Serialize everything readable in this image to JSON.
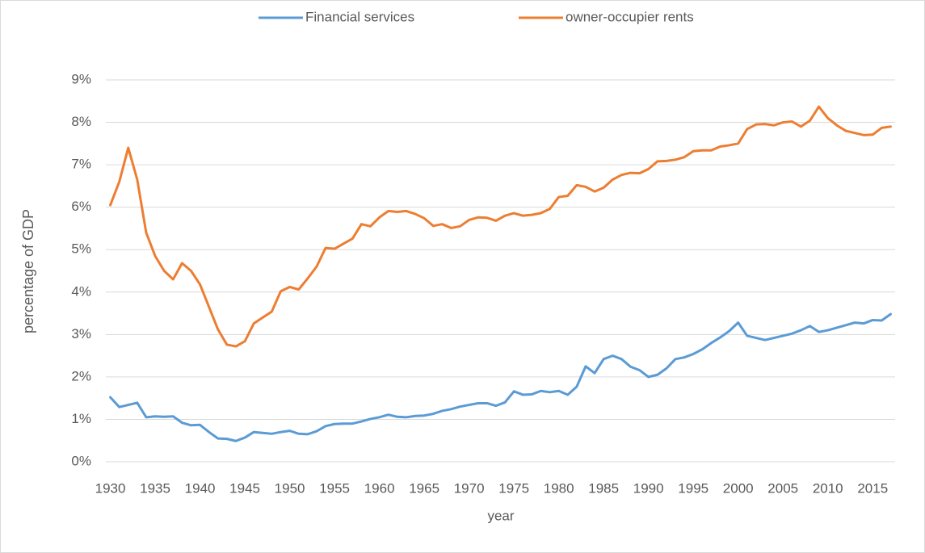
{
  "chart_data": {
    "type": "line",
    "xlabel": "year",
    "ylabel": "percentage of GDP",
    "x": [
      1930,
      1931,
      1932,
      1933,
      1934,
      1935,
      1936,
      1937,
      1938,
      1939,
      1940,
      1941,
      1942,
      1943,
      1944,
      1945,
      1946,
      1947,
      1948,
      1949,
      1950,
      1951,
      1952,
      1953,
      1954,
      1955,
      1956,
      1957,
      1958,
      1959,
      1960,
      1961,
      1962,
      1963,
      1964,
      1965,
      1966,
      1967,
      1968,
      1969,
      1970,
      1971,
      1972,
      1973,
      1974,
      1975,
      1976,
      1977,
      1978,
      1979,
      1980,
      1981,
      1982,
      1983,
      1984,
      1985,
      1986,
      1987,
      1988,
      1989,
      1990,
      1991,
      1992,
      1993,
      1994,
      1995,
      1996,
      1997,
      1998,
      1999,
      2000,
      2001,
      2002,
      2003,
      2004,
      2005,
      2006,
      2007,
      2008,
      2009,
      2010,
      2011,
      2012,
      2013,
      2014,
      2015,
      2016,
      2017
    ],
    "series": [
      {
        "name": "Financial services",
        "color": "#5b9bd5",
        "values": [
          1.52,
          1.29,
          1.34,
          1.39,
          1.05,
          1.07,
          1.06,
          1.07,
          0.92,
          0.86,
          0.87,
          0.7,
          0.55,
          0.54,
          0.49,
          0.57,
          0.7,
          0.68,
          0.66,
          0.7,
          0.73,
          0.66,
          0.65,
          0.72,
          0.84,
          0.89,
          0.9,
          0.9,
          0.95,
          1.01,
          1.05,
          1.11,
          1.06,
          1.05,
          1.08,
          1.09,
          1.13,
          1.2,
          1.24,
          1.3,
          1.34,
          1.38,
          1.38,
          1.32,
          1.4,
          1.66,
          1.58,
          1.59,
          1.67,
          1.64,
          1.67,
          1.58,
          1.77,
          2.25,
          2.09,
          2.42,
          2.5,
          2.42,
          2.24,
          2.16,
          2.0,
          2.05,
          2.2,
          2.42,
          2.46,
          2.54,
          2.65,
          2.8,
          2.93,
          3.08,
          3.28,
          2.97,
          2.92,
          2.87,
          2.92,
          2.97,
          3.02,
          3.1,
          3.2,
          3.06,
          3.1,
          3.16,
          3.22,
          3.28,
          3.26,
          3.34,
          3.33,
          3.48
        ]
      },
      {
        "name": "owner-occupier rents",
        "color": "#ed7d31",
        "values": [
          6.05,
          6.6,
          7.4,
          6.65,
          5.4,
          4.85,
          4.5,
          4.3,
          4.68,
          4.5,
          4.18,
          3.65,
          3.12,
          2.76,
          2.72,
          2.84,
          3.26,
          3.4,
          3.54,
          4.02,
          4.12,
          4.06,
          4.32,
          4.6,
          5.04,
          5.02,
          5.14,
          5.26,
          5.6,
          5.55,
          5.76,
          5.91,
          5.89,
          5.91,
          5.84,
          5.74,
          5.56,
          5.6,
          5.51,
          5.55,
          5.7,
          5.76,
          5.75,
          5.68,
          5.8,
          5.86,
          5.8,
          5.82,
          5.86,
          5.96,
          6.24,
          6.27,
          6.52,
          6.48,
          6.37,
          6.46,
          6.65,
          6.76,
          6.81,
          6.8,
          6.9,
          7.08,
          7.09,
          7.12,
          7.18,
          7.32,
          7.34,
          7.34,
          7.43,
          7.46,
          7.5,
          7.84,
          7.95,
          7.96,
          7.93,
          8.0,
          8.02,
          7.9,
          8.04,
          8.37,
          8.1,
          7.93,
          7.8,
          7.75,
          7.7,
          7.71,
          7.87,
          7.9
        ]
      }
    ],
    "xlim": [
      1929.5,
      2017.5
    ],
    "xticks": [
      1930,
      1935,
      1940,
      1945,
      1950,
      1955,
      1960,
      1965,
      1970,
      1975,
      1980,
      1985,
      1990,
      1995,
      2000,
      2005,
      2010,
      2015
    ],
    "ylim": [
      0,
      9
    ],
    "yticks": [
      {
        "value": 0,
        "label": "0%"
      },
      {
        "value": 1,
        "label": "1%"
      },
      {
        "value": 2,
        "label": "2%"
      },
      {
        "value": 3,
        "label": "3%"
      },
      {
        "value": 4,
        "label": "4%"
      },
      {
        "value": 5,
        "label": "5%"
      },
      {
        "value": 6,
        "label": "6%"
      },
      {
        "value": 7,
        "label": "7%"
      },
      {
        "value": 8,
        "label": "8%"
      },
      {
        "value": 9,
        "label": "9%"
      }
    ],
    "grid": true,
    "legend": "top"
  }
}
